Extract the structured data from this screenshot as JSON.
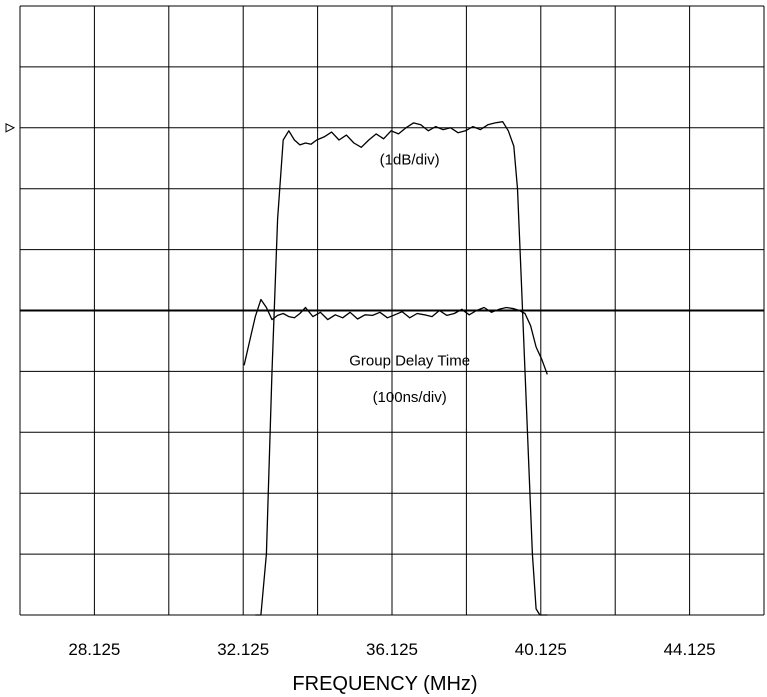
{
  "chart_data": {
    "type": "line",
    "xlabel": "FREQUENCY (MHz)",
    "ylabel": "",
    "xlim": [
      26.125,
      46.125
    ],
    "x_tick_labels": [
      "28.125",
      "32.125",
      "36.125",
      "40.125",
      "44.125"
    ],
    "x_tick_values": [
      28.125,
      32.125,
      36.125,
      40.125,
      44.125
    ],
    "ylim": [
      0,
      10
    ],
    "grid": true,
    "reference_marker": "left-triangle",
    "annotations": [
      {
        "id": "amp_unit",
        "text": "(1dB/div)",
        "x": 36.6,
        "y": 7.4
      },
      {
        "id": "gd_name",
        "text": "Group Delay Time",
        "x": 36.6,
        "y": 4.1
      },
      {
        "id": "gd_unit",
        "text": "(100ns/div)",
        "x": 36.6,
        "y": 3.5
      }
    ],
    "series": [
      {
        "name": "",
        "id": "amplitude",
        "x": [
          32.45,
          32.6,
          32.75,
          32.9,
          33.05,
          33.2,
          33.35,
          33.5,
          33.65,
          33.8,
          33.95,
          34.1,
          34.3,
          34.5,
          34.7,
          34.9,
          35.1,
          35.3,
          35.5,
          35.7,
          35.9,
          36.1,
          36.3,
          36.5,
          36.7,
          36.9,
          37.1,
          37.3,
          37.5,
          37.7,
          37.9,
          38.1,
          38.3,
          38.5,
          38.7,
          38.9,
          39.1,
          39.25,
          39.4,
          39.5,
          39.6,
          39.7,
          39.8,
          39.9,
          40.0,
          40.1,
          40.2,
          40.3
        ],
        "values": [
          0.0,
          0.0,
          1.0,
          4.0,
          6.5,
          7.8,
          7.95,
          7.8,
          7.72,
          7.75,
          7.73,
          7.8,
          7.85,
          7.93,
          7.8,
          7.88,
          7.75,
          7.68,
          7.8,
          7.9,
          7.82,
          7.95,
          7.9,
          8.0,
          8.08,
          8.05,
          7.95,
          8.02,
          7.97,
          8.0,
          7.92,
          7.95,
          8.02,
          7.97,
          8.05,
          8.08,
          8.1,
          7.95,
          7.7,
          7.0,
          5.5,
          4.0,
          2.5,
          1.0,
          0.1,
          0.0,
          0.0,
          0.0
        ]
      },
      {
        "name": "",
        "id": "group_delay",
        "x": [
          32.15,
          32.3,
          32.45,
          32.6,
          32.75,
          32.9,
          33.05,
          33.2,
          33.35,
          33.5,
          33.65,
          33.8,
          34.0,
          34.2,
          34.4,
          34.6,
          34.8,
          35.0,
          35.2,
          35.4,
          35.6,
          35.8,
          36.0,
          36.2,
          36.4,
          36.6,
          36.8,
          37.0,
          37.2,
          37.4,
          37.6,
          37.8,
          38.0,
          38.2,
          38.4,
          38.6,
          38.8,
          39.0,
          39.2,
          39.4,
          39.55,
          39.7,
          39.85,
          40.0,
          40.15,
          40.3
        ],
        "values": [
          4.1,
          4.5,
          4.9,
          5.18,
          5.05,
          4.85,
          4.92,
          4.95,
          4.9,
          4.88,
          4.95,
          5.05,
          4.9,
          4.97,
          4.85,
          4.93,
          4.88,
          4.97,
          4.86,
          4.93,
          4.92,
          4.97,
          4.88,
          4.93,
          4.98,
          4.88,
          4.95,
          4.93,
          4.9,
          5.0,
          4.92,
          4.95,
          5.02,
          4.93,
          5.0,
          5.05,
          4.97,
          5.02,
          5.05,
          5.03,
          5.0,
          4.95,
          4.75,
          4.4,
          4.2,
          3.95
        ]
      }
    ]
  }
}
